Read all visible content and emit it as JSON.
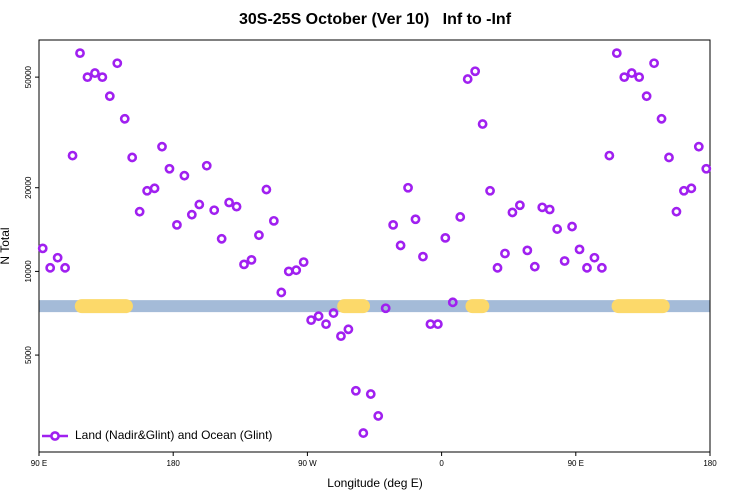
{
  "chart_data": {
    "type": "scatter",
    "title": "30S-25S October (Ver 10)   Inf to -Inf",
    "x_label": "Longitude (deg E)",
    "y_label": "N Total",
    "log_y": true,
    "legend": "lower left",
    "xlim": [
      90,
      540
    ],
    "ylim": [
      2240,
      68000
    ],
    "xticks": [
      {
        "value": 90,
        "label": "90 E"
      },
      180,
      {
        "value": 270,
        "label": "90 W"
      },
      {
        "value": 360,
        "label": "0"
      },
      {
        "value": 450,
        "label": "90 E"
      },
      {
        "value": 540,
        "label": "180"
      }
    ],
    "yticks": [
      5000,
      10000,
      20000,
      50000
    ],
    "surface_band": {
      "value": 7500,
      "color": "#a4bbd8",
      "land_color": "#fcd96a",
      "land": [
        [
          114,
          153
        ],
        [
          290,
          312
        ],
        [
          376,
          392
        ],
        [
          474,
          513
        ]
      ]
    },
    "series": [
      {
        "name": "Land (Nadir&Glint) and Ocean (Glint)",
        "color": "#a020f0",
        "x": [
          92.5,
          97.5,
          102.5,
          107.5,
          112.5,
          117.5,
          122.5,
          127.5,
          132.5,
          137.5,
          142.5,
          147.5,
          152.5,
          157.5,
          162.5,
          167.5,
          172.5,
          177.5,
          182.5,
          187.5,
          192.5,
          197.5,
          202.5,
          207.5,
          212.5,
          217.5,
          222.5,
          227.5,
          232.5,
          237.5,
          242.5,
          247.5,
          252.5,
          257.5,
          262.5,
          267.5,
          272.5,
          277.5,
          282.5,
          287.5,
          292.5,
          297.5,
          302.5,
          307.5,
          312.5,
          317.5,
          322.5,
          327.5,
          332.5,
          337.5,
          342.5,
          347.5,
          352.5,
          357.5,
          362.5,
          367.5,
          372.5,
          377.5,
          382.5,
          387.5,
          392.5,
          397.5,
          402.5,
          407.5,
          412.5,
          417.5,
          422.5,
          427.5,
          432.5,
          437.5,
          442.5,
          447.5,
          452.5,
          457.5,
          462.5,
          467.5,
          472.5,
          477.5,
          482.5,
          487.5,
          492.5,
          497.5,
          502.5,
          507.5,
          512.5,
          517.5,
          522.5,
          527.5,
          532.5,
          537.5
        ],
        "values": [
          12100,
          10300,
          11200,
          10300,
          26100,
          61000,
          50000,
          51700,
          50000,
          42700,
          56100,
          35400,
          25700,
          16400,
          19500,
          19900,
          28100,
          23400,
          14700,
          22100,
          16000,
          17400,
          24000,
          16600,
          13100,
          17700,
          17100,
          10600,
          11000,
          13500,
          19700,
          15200,
          8400,
          10000,
          10100,
          10800,
          6680,
          6900,
          6460,
          7080,
          5850,
          6190,
          3720,
          2620,
          3620,
          3020,
          7370,
          14700,
          12400,
          20000,
          15400,
          11300,
          6460,
          6460,
          13200,
          7740,
          15700,
          49200,
          52500,
          33900,
          19500,
          10300,
          11600,
          16300,
          17300,
          11900,
          10400,
          17000,
          16700,
          14200,
          10900,
          14500,
          12000,
          10300,
          11200,
          10300,
          26100,
          61000,
          50000,
          51700,
          50000,
          42700,
          56100,
          35400,
          25700,
          16400,
          19500,
          19900,
          28100,
          23400
        ]
      }
    ]
  }
}
